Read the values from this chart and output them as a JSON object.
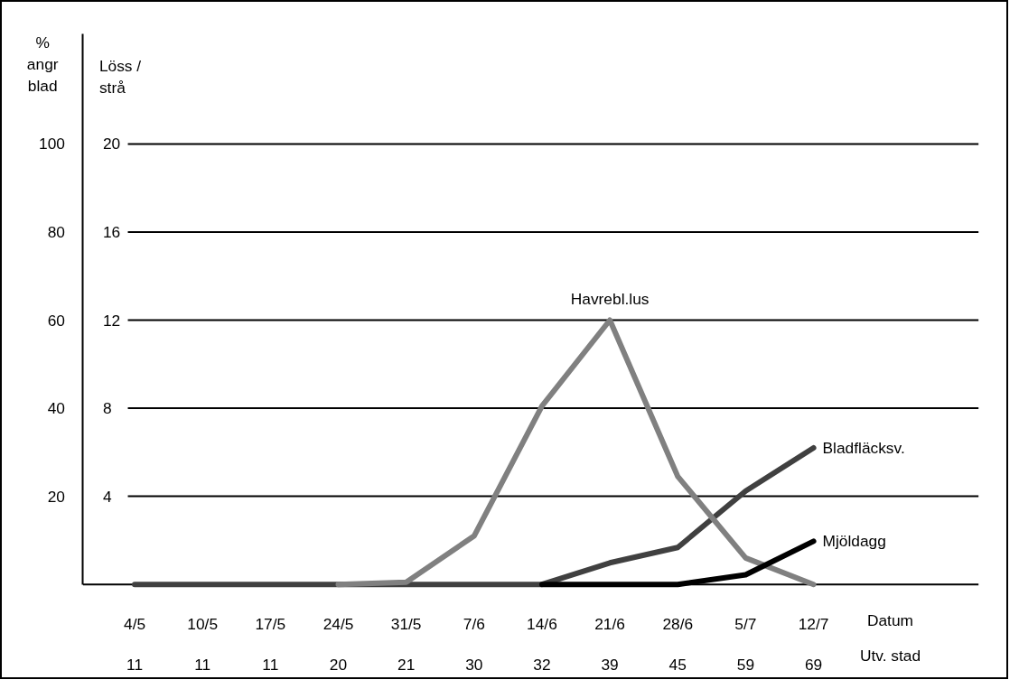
{
  "chart_data": {
    "type": "line",
    "categories": [
      "4/5\n11",
      "10/5\n11",
      "17/5\n11",
      "24/5\n20",
      "31/5\n21",
      "7/6\n30",
      "14/6\n32",
      "21/6\n39",
      "28/6\n45",
      "5/7\n59",
      "12/7\n69"
    ],
    "xlabel": "Datum\nUtv. stad",
    "ylabel": "%\nangr\nblad",
    "y2label": "Löss /\nstrå",
    "ylim": [
      0,
      125
    ],
    "yticks": [
      20,
      40,
      60,
      80,
      100
    ],
    "y2lim": [
      0,
      25
    ],
    "y2ticks": [
      4,
      8,
      12,
      16,
      20
    ],
    "grid": "y",
    "marker": "none",
    "line_style": "solid",
    "series": [
      {
        "name": "Bladfläcksv.",
        "color": "#404040",
        "values": [
          0,
          0,
          0,
          0,
          0,
          0,
          0,
          4.9,
          8.4,
          21.2,
          31.0
        ]
      },
      {
        "name": "Havrebl.lus",
        "color": "#808080",
        "axis": "y2",
        "values": [
          null,
          null,
          null,
          0,
          0.1,
          2.2,
          8.1,
          12.0,
          4.9,
          1.2,
          0
        ]
      },
      {
        "name": "Mjöldagg",
        "color": "#000000",
        "values": [
          null,
          null,
          null,
          null,
          null,
          null,
          0,
          0,
          0,
          2.2,
          9.8
        ]
      }
    ]
  }
}
